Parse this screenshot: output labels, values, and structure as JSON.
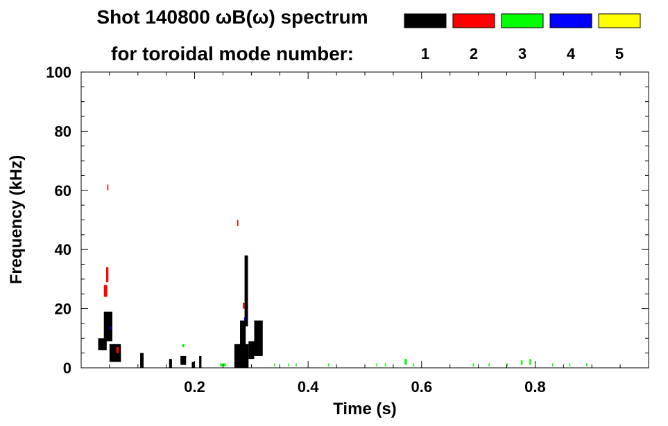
{
  "chart_data": {
    "type": "heatmap",
    "title_line1": "Shot 140800 ωB(ω) spectrum",
    "title_line2": "for toroidal mode number:",
    "xlabel": "Time (s)",
    "ylabel": "Frequency (kHz)",
    "xlim": [
      0.0,
      1.0
    ],
    "ylim": [
      0,
      100
    ],
    "xticks": [
      0.2,
      0.4,
      0.6,
      0.8
    ],
    "yticks": [
      0,
      20,
      40,
      60,
      80,
      100
    ],
    "x_minor_step": 0.05,
    "y_minor_step": 5,
    "legend": {
      "placement": "top-right",
      "entries": [
        {
          "label": "1",
          "color": "#000000"
        },
        {
          "label": "2",
          "color": "#ff0000"
        },
        {
          "label": "3",
          "color": "#00ff00"
        },
        {
          "label": "4",
          "color": "#0000ff"
        },
        {
          "label": "5",
          "color": "#ffff00"
        }
      ]
    },
    "series": [
      {
        "mode": "1",
        "color": "#000000",
        "blobs": [
          {
            "x": [
              0.03,
              0.045
            ],
            "y": [
              6,
              10
            ]
          },
          {
            "x": [
              0.04,
              0.055
            ],
            "y": [
              9,
              19
            ]
          },
          {
            "x": [
              0.05,
              0.07
            ],
            "y": [
              2,
              8
            ]
          },
          {
            "x": [
              0.058,
              0.07
            ],
            "y": [
              2,
              5
            ]
          },
          {
            "x": [
              0.104,
              0.11
            ],
            "y": [
              0,
              5
            ]
          },
          {
            "x": [
              0.155,
              0.16
            ],
            "y": [
              0,
              3
            ]
          },
          {
            "x": [
              0.175,
              0.185
            ],
            "y": [
              1,
              4
            ]
          },
          {
            "x": [
              0.195,
              0.2
            ],
            "y": [
              0,
              2
            ]
          },
          {
            "x": [
              0.208,
              0.212
            ],
            "y": [
              0,
              4
            ]
          },
          {
            "x": [
              0.27,
              0.295
            ],
            "y": [
              0,
              8
            ]
          },
          {
            "x": [
              0.28,
              0.29
            ],
            "y": [
              7,
              16
            ]
          },
          {
            "x": [
              0.288,
              0.294
            ],
            "y": [
              14,
              38
            ]
          },
          {
            "x": [
              0.295,
              0.305
            ],
            "y": [
              3,
              9
            ]
          },
          {
            "x": [
              0.305,
              0.32
            ],
            "y": [
              4,
              16
            ]
          }
        ]
      },
      {
        "mode": "2",
        "color": "#ff0000",
        "blobs": [
          {
            "x": [
              0.04,
              0.046
            ],
            "y": [
              24,
              28
            ]
          },
          {
            "x": [
              0.044,
              0.048
            ],
            "y": [
              29,
              34
            ]
          },
          {
            "x": [
              0.046,
              0.048
            ],
            "y": [
              60,
              62
            ]
          },
          {
            "x": [
              0.062,
              0.066
            ],
            "y": [
              5,
              7
            ]
          },
          {
            "x": [
              0.275,
              0.277
            ],
            "y": [
              48,
              50
            ]
          },
          {
            "x": [
              0.285,
              0.288
            ],
            "y": [
              20,
              22
            ]
          }
        ]
      },
      {
        "mode": "3",
        "color": "#00ff00",
        "blobs": [
          {
            "x": [
              0.178,
              0.182
            ],
            "y": [
              7,
              8
            ]
          },
          {
            "x": [
              0.245,
              0.255
            ],
            "y": [
              0.5,
              1.5
            ]
          },
          {
            "x": [
              0.34,
              0.342
            ],
            "y": [
              0.5,
              1.5
            ]
          },
          {
            "x": [
              0.365,
              0.367
            ],
            "y": [
              0.5,
              1.5
            ]
          },
          {
            "x": [
              0.378,
              0.38
            ],
            "y": [
              0.5,
              1.5
            ]
          },
          {
            "x": [
              0.435,
              0.437
            ],
            "y": [
              0.5,
              1.5
            ]
          },
          {
            "x": [
              0.52,
              0.522
            ],
            "y": [
              0.5,
              1.5
            ]
          },
          {
            "x": [
              0.535,
              0.537
            ],
            "y": [
              0.5,
              1.5
            ]
          },
          {
            "x": [
              0.57,
              0.574
            ],
            "y": [
              1,
              3
            ]
          },
          {
            "x": [
              0.585,
              0.587
            ],
            "y": [
              0.5,
              1.5
            ]
          },
          {
            "x": [
              0.69,
              0.692
            ],
            "y": [
              0.5,
              1.5
            ]
          },
          {
            "x": [
              0.718,
              0.72
            ],
            "y": [
              0.5,
              1.5
            ]
          },
          {
            "x": [
              0.75,
              0.752
            ],
            "y": [
              0.5,
              1.5
            ]
          },
          {
            "x": [
              0.775,
              0.778
            ],
            "y": [
              1,
              2.5
            ]
          },
          {
            "x": [
              0.79,
              0.793
            ],
            "y": [
              1,
              3
            ]
          },
          {
            "x": [
              0.83,
              0.832
            ],
            "y": [
              0.5,
              1.5
            ]
          },
          {
            "x": [
              0.86,
              0.862
            ],
            "y": [
              0.5,
              1.5
            ]
          },
          {
            "x": [
              0.89,
              0.892
            ],
            "y": [
              0.5,
              1.5
            ]
          }
        ]
      },
      {
        "mode": "4",
        "color": "#0000ff",
        "blobs": [
          {
            "x": [
              0.051,
              0.053
            ],
            "y": [
              13,
              14
            ]
          },
          {
            "x": [
              0.287,
              0.289
            ],
            "y": [
              16,
              17
            ]
          }
        ]
      },
      {
        "mode": "5",
        "color": "#ffff00",
        "blobs": []
      }
    ],
    "grid": false
  }
}
